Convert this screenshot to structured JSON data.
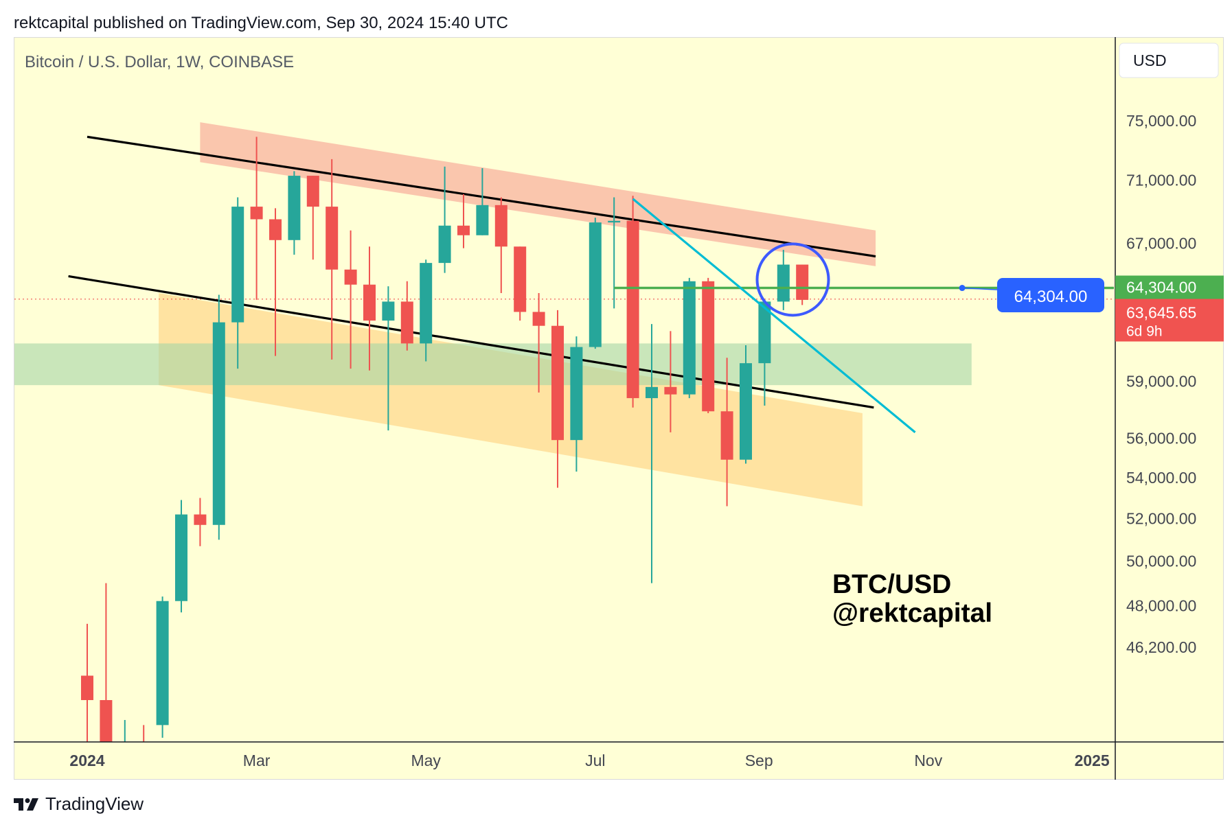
{
  "header": {
    "published": "rektcapital published on TradingView.com, Sep 30, 2024 15:40 UTC"
  },
  "footer": {
    "brand": "TradingView",
    "logo_icon": "tradingview-logo-icon"
  },
  "colors": {
    "background": "#ffffd6",
    "up": "#26a69a",
    "down": "#ef5350",
    "green_line": "#4caf50",
    "trendline": "#00bcd4",
    "circle": "#3d5afe",
    "red_zone": "#f9b8a3",
    "green_zone": "#a5d6a7",
    "orange_zone": "#ffd98f",
    "price_tag_red": "#f05350",
    "price_tag_green": "#4caf50",
    "callout_blue": "#2962ff"
  },
  "chart_data": {
    "type": "candlestick",
    "title": "Bitcoin / U.S. Dollar, 1W, COINBASE",
    "currency_button": "USD",
    "ylim": [
      44000,
      79000
    ],
    "y_ticks": [
      "75,000.00",
      "71,000.00",
      "67,000.00",
      "59,000.00",
      "56,000.00",
      "54,000.00",
      "52,000.00",
      "50,000.00",
      "48,000.00",
      "46,200.00"
    ],
    "y_tick_values": [
      75000,
      71000,
      67000,
      59000,
      56000,
      54000,
      52000,
      50000,
      48000,
      46200
    ],
    "x_ticks": [
      "2024",
      "Mar",
      "May",
      "Jul",
      "Sep",
      "Nov",
      "2025"
    ],
    "x_tick_weeks": [
      0,
      9,
      18,
      27,
      35.7,
      44.7,
      53.4
    ],
    "candles": [
      {
        "week": 0,
        "date": "2024-01-01",
        "open": 45000,
        "high": 47200,
        "low": 42000,
        "close": 44000
      },
      {
        "week": 1,
        "date": "2024-01-08",
        "open": 44000,
        "high": 49000,
        "low": 41500,
        "close": 41700
      },
      {
        "week": 2,
        "date": "2024-01-15",
        "open": 41700,
        "high": 43200,
        "low": 40600,
        "close": 41900
      },
      {
        "week": 3,
        "date": "2024-01-22",
        "open": 42000,
        "high": 43000,
        "low": 39500,
        "close": 40000
      },
      {
        "week": 4,
        "date": "2024-01-29",
        "open": 43000,
        "high": 48400,
        "low": 42500,
        "close": 48200
      },
      {
        "week": 5,
        "date": "2024-02-05",
        "open": 48200,
        "high": 52900,
        "low": 47700,
        "close": 52200
      },
      {
        "week": 6,
        "date": "2024-02-12",
        "open": 52200,
        "high": 53000,
        "low": 50700,
        "close": 51700
      },
      {
        "week": 7,
        "date": "2024-02-19",
        "open": 51700,
        "high": 63900,
        "low": 51000,
        "close": 62300
      },
      {
        "week": 8,
        "date": "2024-02-26",
        "open": 62300,
        "high": 69900,
        "low": 59700,
        "close": 69300
      },
      {
        "week": 9,
        "date": "2024-03-04",
        "open": 69300,
        "high": 73900,
        "low": 63600,
        "close": 68500
      },
      {
        "week": 10,
        "date": "2024-03-11",
        "open": 68500,
        "high": 69200,
        "low": 60400,
        "close": 67200
      },
      {
        "week": 11,
        "date": "2024-03-18",
        "open": 67200,
        "high": 71600,
        "low": 66300,
        "close": 71300
      },
      {
        "week": 12,
        "date": "2024-03-25",
        "open": 71300,
        "high": 71300,
        "low": 66000,
        "close": 69300
      },
      {
        "week": 13,
        "date": "2024-04-01",
        "open": 69300,
        "high": 72400,
        "low": 60200,
        "close": 65400
      },
      {
        "week": 14,
        "date": "2024-04-08",
        "open": 65400,
        "high": 67800,
        "low": 59700,
        "close": 64500
      },
      {
        "week": 15,
        "date": "2024-04-15",
        "open": 64500,
        "high": 66800,
        "low": 59600,
        "close": 62400
      },
      {
        "week": 16,
        "date": "2024-04-22",
        "open": 62400,
        "high": 64400,
        "low": 56400,
        "close": 63500
      },
      {
        "week": 17,
        "date": "2024-04-29",
        "open": 63500,
        "high": 64700,
        "low": 60700,
        "close": 61100
      },
      {
        "week": 18,
        "date": "2024-05-06",
        "open": 61100,
        "high": 66000,
        "low": 60100,
        "close": 65800
      },
      {
        "week": 19,
        "date": "2024-05-13",
        "open": 65800,
        "high": 71900,
        "low": 65200,
        "close": 68100
      },
      {
        "week": 20,
        "date": "2024-05-20",
        "open": 68100,
        "high": 70100,
        "low": 66700,
        "close": 67500
      },
      {
        "week": 21,
        "date": "2024-05-27",
        "open": 67500,
        "high": 71800,
        "low": 67500,
        "close": 69400
      },
      {
        "week": 22,
        "date": "2024-06-03",
        "open": 69400,
        "high": 69900,
        "low": 64000,
        "close": 66800
      },
      {
        "week": 23,
        "date": "2024-06-10",
        "open": 66800,
        "high": 66800,
        "low": 62400,
        "close": 62900
      },
      {
        "week": 24,
        "date": "2024-06-17",
        "open": 62900,
        "high": 64000,
        "low": 58400,
        "close": 62100
      },
      {
        "week": 25,
        "date": "2024-06-24",
        "open": 62100,
        "high": 63000,
        "low": 53500,
        "close": 55900
      },
      {
        "week": 26,
        "date": "2024-07-01",
        "open": 55900,
        "high": 61500,
        "low": 54300,
        "close": 60900
      },
      {
        "week": 27,
        "date": "2024-07-08",
        "open": 60900,
        "high": 68600,
        "low": 60800,
        "close": 68300
      },
      {
        "week": 28,
        "date": "2024-07-15",
        "open": 68300,
        "high": 69900,
        "low": 63100,
        "close": 68400
      },
      {
        "week": 29,
        "date": "2024-07-22",
        "open": 68400,
        "high": 70000,
        "low": 57600,
        "close": 58100
      },
      {
        "week": 30,
        "date": "2024-07-29",
        "open": 58100,
        "high": 62200,
        "low": 49000,
        "close": 58700
      },
      {
        "week": 31,
        "date": "2024-08-05",
        "open": 58700,
        "high": 61800,
        "low": 56300,
        "close": 58300
      },
      {
        "week": 32,
        "date": "2024-08-12",
        "open": 58300,
        "high": 64900,
        "low": 58100,
        "close": 64700
      },
      {
        "week": 33,
        "date": "2024-08-19",
        "open": 64700,
        "high": 64900,
        "low": 57300,
        "close": 57400
      },
      {
        "week": 34,
        "date": "2024-08-26",
        "open": 57400,
        "high": 60300,
        "low": 52600,
        "close": 54900
      },
      {
        "week": 35,
        "date": "2024-09-02",
        "open": 54900,
        "high": 61000,
        "low": 54700,
        "close": 60000
      },
      {
        "week": 36,
        "date": "2024-09-09",
        "open": 60000,
        "high": 63600,
        "low": 57700,
        "close": 63500
      },
      {
        "week": 37,
        "date": "2024-09-16",
        "open": 63500,
        "high": 66600,
        "low": 63000,
        "close": 65700
      },
      {
        "week": 38,
        "date": "2024-09-23",
        "open": 65700,
        "high": 65700,
        "low": 63300,
        "close": 63600
      }
    ],
    "horizontal_level": {
      "value": 64304,
      "label": "64,304.00",
      "start_week": 28
    },
    "current_price": {
      "label": "63,645.65",
      "countdown": "6d 9h",
      "value": 63645.65
    },
    "channel_upper": {
      "from": {
        "week": 0,
        "price": 73900
      },
      "to": {
        "week": 41.9,
        "price": 66200
      }
    },
    "channel_lower": {
      "from": {
        "week": -1,
        "price": 65000
      },
      "to": {
        "week": 41.8,
        "price": 57600
      }
    },
    "diagonal_resistance": {
      "from": {
        "week": 29,
        "price": 69800
      },
      "to": {
        "week": 44,
        "price": 56300
      }
    },
    "red_zone": {
      "x1": 6,
      "x2": 41.9,
      "top_left": 74900,
      "bottom_left": 72200,
      "top_right": 67800,
      "bottom_right": 65600
    },
    "green_zone": {
      "x1": -4,
      "x2": 47,
      "top": 61100,
      "bottom": 58800
    },
    "orange_zone": {
      "x1": 3.8,
      "x2": 41.2,
      "top_left": 64000,
      "bottom_left": 58800,
      "top_right": 57300,
      "bottom_right": 52600
    },
    "callout": {
      "label": "64,304.00",
      "anchor_week": 46.5
    },
    "annotation": {
      "line1": "BTC/USD",
      "line2": "@rektcapital"
    }
  }
}
